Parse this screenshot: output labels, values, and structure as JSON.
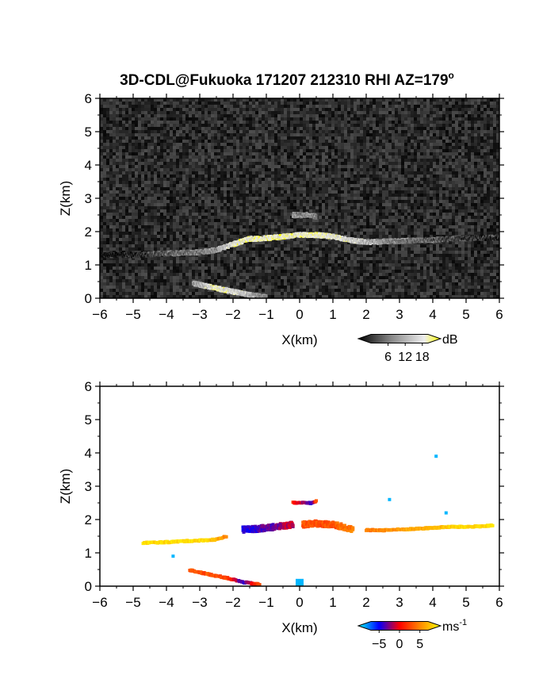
{
  "title": "3D-CDL@Fukuoka 171207 212310 RHI AZ=179",
  "title_superscript": "o",
  "chart_data": [
    {
      "type": "heatmap",
      "panel": "reflectivity",
      "xlabel": "X(km)",
      "ylabel": "Z(km)",
      "xlim": [
        -6,
        6
      ],
      "ylim": [
        0,
        6
      ],
      "x_ticks": [
        -6,
        -5,
        -4,
        -3,
        -2,
        -1,
        0,
        1,
        2,
        3,
        4,
        5,
        6
      ],
      "y_ticks": [
        0,
        1,
        2,
        3,
        4,
        5,
        6
      ],
      "background": "noise (gray speckle, ~0-5 dB)",
      "colorbar": {
        "label": "dB",
        "tick_labels": [
          "6",
          "12",
          "18"
        ],
        "tick_values": [
          6,
          12,
          18
        ],
        "range": [
          0,
          20
        ],
        "colors": [
          "#000000",
          "#444444",
          "#888888",
          "#bbbbbb",
          "#eeeeee",
          "#ffff00"
        ]
      },
      "features": [
        {
          "name": "aerosol layer",
          "x": [
            -6,
            -4.8,
            -4,
            -3,
            -2.5,
            -2,
            -1.5,
            -1,
            -0.5,
            0,
            0.5,
            1,
            1.5,
            2,
            3,
            4,
            5,
            6
          ],
          "z": [
            1.3,
            1.3,
            1.35,
            1.38,
            1.45,
            1.62,
            1.78,
            1.8,
            1.85,
            1.9,
            1.9,
            1.85,
            1.75,
            1.68,
            1.72,
            1.75,
            1.8,
            1.82
          ],
          "value_db": [
            3,
            5,
            8,
            10,
            12,
            18,
            19,
            19,
            19,
            19,
            19,
            18,
            17,
            14,
            10,
            8,
            6,
            5
          ]
        },
        {
          "name": "cloud patch",
          "x": [
            -0.2,
            0.0,
            0.3,
            0.5
          ],
          "z": [
            2.5,
            2.5,
            2.5,
            2.45
          ],
          "value_db": [
            12,
            10,
            12,
            10
          ]
        },
        {
          "name": "ground return",
          "x": [
            -3.2,
            -2.5,
            -2.0,
            -1.5,
            -1.0
          ],
          "z": [
            0.45,
            0.3,
            0.2,
            0.1,
            0.03
          ],
          "value_db": [
            12,
            19,
            17,
            14,
            10
          ]
        }
      ]
    },
    {
      "type": "heatmap",
      "panel": "doppler velocity",
      "xlabel": "X(km)",
      "ylabel": "Z(km)",
      "xlim": [
        -6,
        6
      ],
      "ylim": [
        0,
        6
      ],
      "x_ticks": [
        -6,
        -5,
        -4,
        -3,
        -2,
        -1,
        0,
        1,
        2,
        3,
        4,
        5,
        6
      ],
      "y_ticks": [
        0,
        1,
        2,
        3,
        4,
        5,
        6
      ],
      "colorbar": {
        "label": "ms",
        "label_exponent": "-1",
        "tick_labels": [
          "-5",
          "0",
          "5"
        ],
        "tick_values": [
          -5,
          0,
          5
        ],
        "range": [
          -7,
          7
        ],
        "colors": [
          "#00ffff",
          "#0000ff",
          "#ff0000",
          "#ff8800",
          "#ffff00"
        ]
      },
      "features": [
        {
          "name": "layer west",
          "x": [
            -4.7,
            -4,
            -3.5,
            -3,
            -2.5,
            -2.2
          ],
          "z": [
            1.3,
            1.32,
            1.35,
            1.37,
            1.4,
            1.5
          ],
          "velocity": [
            6,
            6,
            6,
            6,
            5,
            3
          ]
        },
        {
          "name": "layer central blue",
          "x": [
            -1.7,
            -1.3,
            -1,
            -0.7,
            -0.4,
            -0.2
          ],
          "z": [
            1.7,
            1.72,
            1.75,
            1.78,
            1.82,
            1.84
          ],
          "velocity": [
            -3,
            -3,
            -2,
            -2,
            -1,
            -1
          ]
        },
        {
          "name": "layer central red",
          "x": [
            0.1,
            0.4,
            0.7,
            1,
            1.3,
            1.6
          ],
          "z": [
            1.85,
            1.88,
            1.87,
            1.85,
            1.78,
            1.7
          ],
          "velocity": [
            2,
            2,
            2,
            2,
            3,
            3
          ]
        },
        {
          "name": "layer east",
          "x": [
            2,
            2.5,
            3,
            3.5,
            4,
            4.5,
            5,
            5.5,
            5.8
          ],
          "z": [
            1.68,
            1.68,
            1.7,
            1.72,
            1.75,
            1.78,
            1.78,
            1.8,
            1.82
          ],
          "velocity": [
            3,
            3.5,
            4,
            4.5,
            5,
            5.5,
            6,
            6,
            6
          ]
        },
        {
          "name": "cloud patch",
          "x": [
            -0.2,
            0.4,
            0.5
          ],
          "z": [
            2.5,
            2.5,
            2.55
          ],
          "velocity": [
            1,
            -3,
            2
          ]
        },
        {
          "name": "ground return",
          "x": [
            -3.3,
            -2.7,
            -2.2,
            -1.7,
            -1.2
          ],
          "z": [
            0.48,
            0.35,
            0.25,
            0.12,
            0.05
          ],
          "velocity": [
            2,
            2,
            2,
            -3,
            2
          ]
        },
        {
          "name": "near-site echo",
          "x": [
            0.0
          ],
          "z": [
            0.1
          ],
          "velocity": [
            -6
          ]
        },
        {
          "name": "isolated points",
          "x": [
            -3.8,
            2.7,
            4.1,
            4.4
          ],
          "z": [
            0.9,
            2.6,
            3.9,
            2.2
          ],
          "velocity": [
            -6,
            -6,
            -6,
            -6
          ]
        }
      ]
    }
  ]
}
